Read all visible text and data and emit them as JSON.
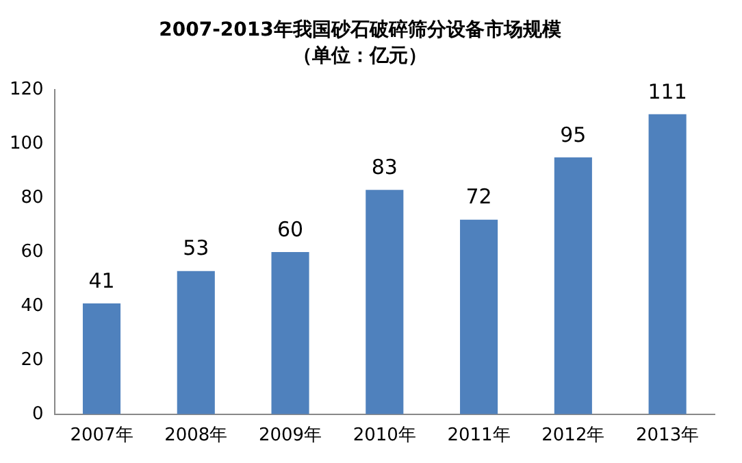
{
  "chart_data": {
    "type": "bar",
    "title": "2007-2013年我国砂石破碎筛分设备市场规模",
    "subtitle": "（单位：亿元）",
    "categories": [
      "2007年",
      "2008年",
      "2009年",
      "2010年",
      "2011年",
      "2012年",
      "2013年"
    ],
    "values": [
      41,
      53,
      60,
      83,
      72,
      95,
      111
    ],
    "color": "#4f81bd",
    "ylim": [
      0,
      120
    ],
    "yticks": [
      0,
      20,
      40,
      60,
      80,
      100,
      120
    ],
    "grid": false,
    "legend": false,
    "data_labels": true
  }
}
